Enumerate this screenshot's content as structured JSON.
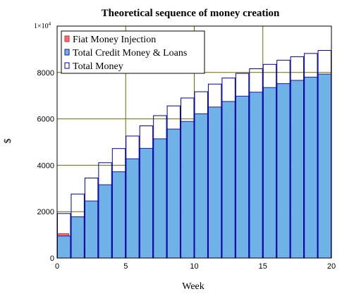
{
  "chart_data": {
    "type": "bar",
    "title": "Theoretical sequence of money creation",
    "xlabel": "Week",
    "ylabel": "$",
    "xlim": [
      0,
      20
    ],
    "ylim": [
      0,
      10000
    ],
    "y_scale_label": {
      "base": "1×10",
      "exponent": "4"
    },
    "xticks": [
      "0",
      "5",
      "10",
      "15",
      "20"
    ],
    "yticks": [
      "0",
      "2000",
      "4000",
      "6000",
      "8000"
    ],
    "grid": true,
    "legend_position": "top-left",
    "colors": {
      "fiat": "#ff6b6b",
      "credit_fill": "#6fb3e6",
      "credit_edge": "#1a1aa8",
      "total": "#0000aa",
      "grid": "#6b6b00"
    },
    "series": [
      {
        "name": "Fiat Money Injection",
        "x": [
          0
        ],
        "values": [
          1050
        ]
      },
      {
        "name": "Total Credit Money & Loans",
        "x": [
          1,
          2,
          3,
          4,
          5,
          6,
          7,
          8,
          9,
          10,
          11,
          12,
          13,
          14,
          15,
          16,
          17,
          18,
          19,
          20
        ],
        "values": [
          950,
          1780,
          2460,
          3160,
          3720,
          4280,
          4730,
          5140,
          5560,
          5890,
          6220,
          6510,
          6750,
          6980,
          7150,
          7350,
          7520,
          7660,
          7800,
          7930
        ]
      },
      {
        "name": "Total Money",
        "x": [
          1,
          2,
          3,
          4,
          5,
          6,
          7,
          8,
          9,
          10,
          11,
          12,
          13,
          14,
          15,
          16,
          17,
          18,
          19,
          20
        ],
        "values": [
          1920,
          2760,
          3450,
          4110,
          4720,
          5260,
          5700,
          6140,
          6560,
          6900,
          7170,
          7500,
          7760,
          7960,
          8160,
          8350,
          8530,
          8680,
          8820,
          8950
        ]
      }
    ]
  }
}
